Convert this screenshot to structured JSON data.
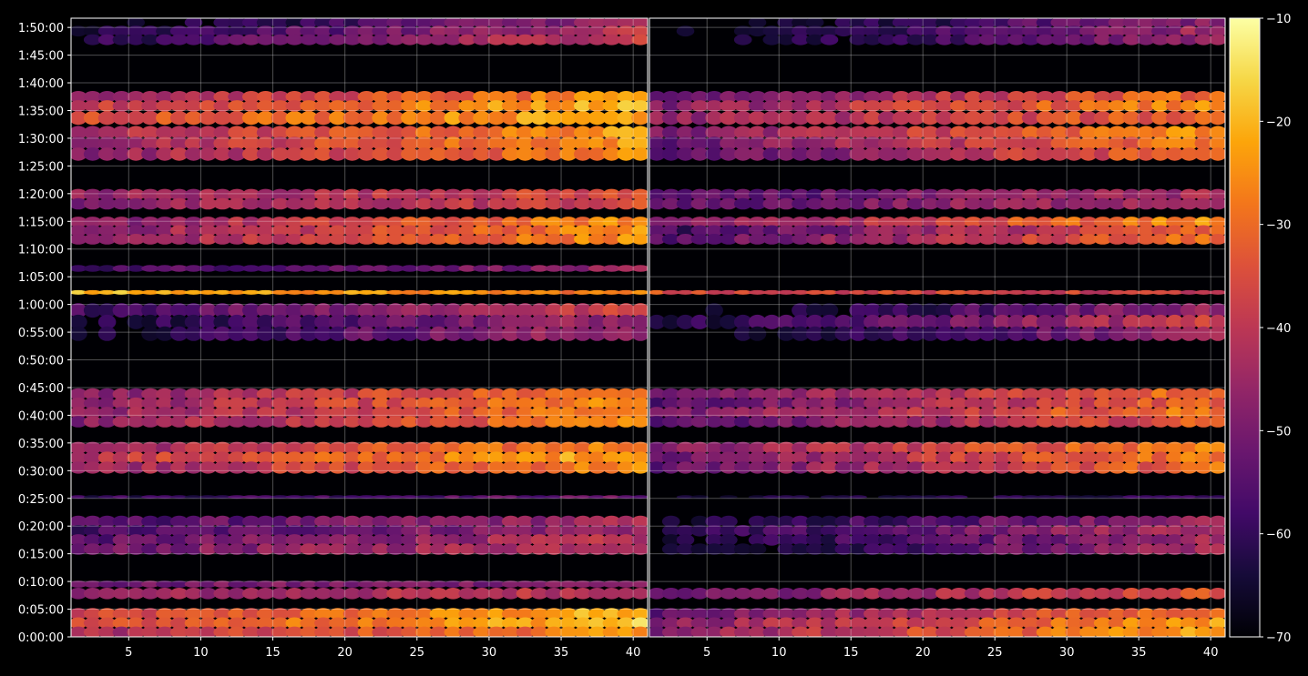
{
  "chart_data": [
    {
      "type": "heatmap",
      "panel": "left",
      "title": "",
      "xlabel": "",
      "ylabel": "",
      "xlim": [
        1,
        40
      ],
      "ylim": [
        0,
        6700
      ],
      "x_ticks": [
        5,
        10,
        15,
        20,
        25,
        30,
        35,
        40
      ],
      "x_tick_labels": [
        "5",
        "10",
        "15",
        "20",
        "25",
        "30",
        "35",
        "40"
      ],
      "y_tick_labels": [
        "0:00:00",
        "0:05:00",
        "0:10:00",
        "0:15:00",
        "0:20:00",
        "0:25:00",
        "0:30:00",
        "0:35:00",
        "0:40:00",
        "0:45:00",
        "0:50:00",
        "0:55:00",
        "1:00:00",
        "1:05:00",
        "1:10:00",
        "1:15:00",
        "1:20:00",
        "1:25:00",
        "1:30:00",
        "1:35:00",
        "1:40:00",
        "1:45:00",
        "1:50:00"
      ],
      "grid": true,
      "colormap": "inferno",
      "bands": [
        {
          "y_start": 0,
          "y_end": 300,
          "value_left": -40,
          "value_right": -22
        },
        {
          "y_start": 420,
          "y_end": 520,
          "value_left": -42,
          "value_right": -34
        },
        {
          "y_start": 540,
          "y_end": 600,
          "value_left": -55,
          "value_right": -50
        },
        {
          "y_start": 900,
          "y_end": 1300,
          "value_left": -55,
          "value_right": -42
        },
        {
          "y_start": 1500,
          "y_end": 1530,
          "value_left": -58,
          "value_right": -50
        },
        {
          "y_start": 1780,
          "y_end": 2100,
          "value_left": -44,
          "value_right": -24
        },
        {
          "y_start": 2280,
          "y_end": 2680,
          "value_left": -52,
          "value_right": -30
        },
        {
          "y_start": 3220,
          "y_end": 3600,
          "value_left": -60,
          "value_right": -40
        },
        {
          "y_start": 3710,
          "y_end": 3750,
          "value_left": -22,
          "value_right": -30
        },
        {
          "y_start": 3960,
          "y_end": 4020,
          "value_left": -55,
          "value_right": -45
        },
        {
          "y_start": 4260,
          "y_end": 4540,
          "value_left": -50,
          "value_right": -26
        },
        {
          "y_start": 4640,
          "y_end": 4840,
          "value_left": -50,
          "value_right": -38
        },
        {
          "y_start": 5170,
          "y_end": 5520,
          "value_left": -45,
          "value_right": -24
        },
        {
          "y_start": 5560,
          "y_end": 5680,
          "value_left": -38,
          "value_right": -24
        },
        {
          "y_start": 5700,
          "y_end": 5900,
          "value_left": -42,
          "value_right": -22
        },
        {
          "y_start": 6420,
          "y_end": 6700,
          "value_left": -65,
          "value_right": -40
        }
      ]
    },
    {
      "type": "heatmap",
      "panel": "right",
      "title": "",
      "xlabel": "",
      "ylabel": "",
      "xlim": [
        1,
        40
      ],
      "ylim": [
        0,
        6700
      ],
      "x_ticks": [
        5,
        10,
        15,
        20,
        25,
        30,
        35,
        40
      ],
      "x_tick_labels": [
        "5",
        "10",
        "15",
        "20",
        "25",
        "30",
        "35",
        "40"
      ],
      "grid": true,
      "colormap": "inferno",
      "bands": [
        {
          "y_start": 0,
          "y_end": 300,
          "value_left": -52,
          "value_right": -26
        },
        {
          "y_start": 420,
          "y_end": 520,
          "value_left": -58,
          "value_right": -38
        },
        {
          "y_start": 900,
          "y_end": 1300,
          "value_left": -68,
          "value_right": -46
        },
        {
          "y_start": 1500,
          "y_end": 1530,
          "value_left": -62,
          "value_right": -55
        },
        {
          "y_start": 1780,
          "y_end": 2100,
          "value_left": -50,
          "value_right": -26
        },
        {
          "y_start": 2280,
          "y_end": 2680,
          "value_left": -56,
          "value_right": -32
        },
        {
          "y_start": 3220,
          "y_end": 3600,
          "value_left": -68,
          "value_right": -42
        },
        {
          "y_start": 3710,
          "y_end": 3750,
          "value_left": -30,
          "value_right": -34
        },
        {
          "y_start": 4260,
          "y_end": 4540,
          "value_left": -55,
          "value_right": -28
        },
        {
          "y_start": 4640,
          "y_end": 4840,
          "value_left": -56,
          "value_right": -42
        },
        {
          "y_start": 5170,
          "y_end": 5520,
          "value_left": -52,
          "value_right": -26
        },
        {
          "y_start": 5560,
          "y_end": 5680,
          "value_left": -44,
          "value_right": -28
        },
        {
          "y_start": 5700,
          "y_end": 5900,
          "value_left": -50,
          "value_right": -26
        },
        {
          "y_start": 6420,
          "y_end": 6700,
          "value_left": -70,
          "value_right": -44
        }
      ]
    }
  ],
  "colorbar": {
    "range": [
      -70,
      -10
    ],
    "tick_labels": [
      "−70",
      "−60",
      "−50",
      "−40",
      "−30",
      "−20",
      "−10"
    ]
  }
}
